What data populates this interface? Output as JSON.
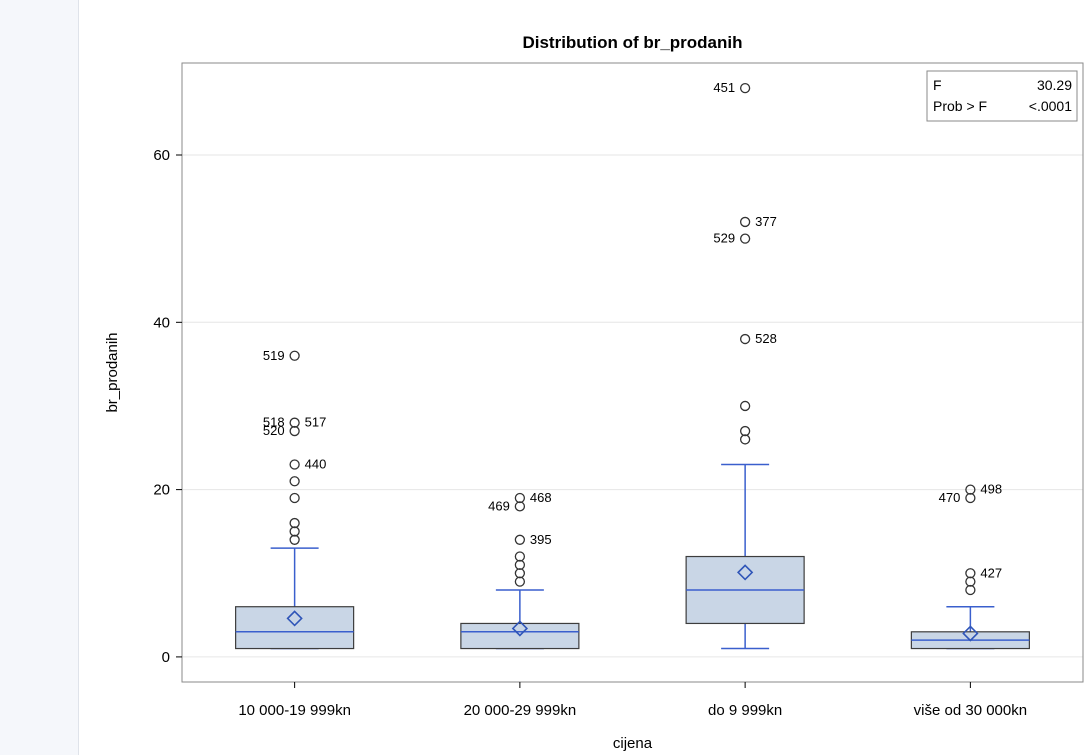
{
  "chart_data": {
    "type": "box",
    "title": "Distribution of br_prodanih",
    "xlabel": "cijena",
    "ylabel": "br_prodanih",
    "ylim": [
      -3,
      71
    ],
    "yticks": [
      0,
      20,
      40,
      60
    ],
    "ytick_labels": [
      "0",
      "20",
      "40",
      "60"
    ],
    "grid": "horizontal",
    "categories": [
      "10 000-19 999kn",
      "20 000-29 999kn",
      "do 9 999kn",
      "više od 30 000kn"
    ],
    "boxes": [
      {
        "category": "10 000-19 999kn",
        "whisker_low": 1,
        "q1": 1,
        "median": 3,
        "q3": 6,
        "whisker_high": 13,
        "mean": 4.6,
        "outliers": [
          14,
          15,
          16,
          19,
          21,
          23,
          27,
          28,
          36
        ]
      },
      {
        "category": "20 000-29 999kn",
        "whisker_low": 1,
        "q1": 1,
        "median": 3,
        "q3": 4,
        "whisker_high": 8,
        "mean": 3.4,
        "outliers": [
          9,
          10,
          11,
          12,
          14,
          18,
          19
        ]
      },
      {
        "category": "do 9 999kn",
        "whisker_low": 1,
        "q1": 4,
        "median": 8,
        "q3": 12,
        "whisker_high": 23,
        "mean": 10.1,
        "outliers": [
          26,
          27,
          30,
          38,
          50,
          52,
          68
        ]
      },
      {
        "category": "više od 30 000kn",
        "whisker_low": 1,
        "q1": 1,
        "median": 2,
        "q3": 3,
        "whisker_high": 6,
        "mean": 2.8,
        "outliers": [
          8,
          9,
          10,
          19,
          20
        ]
      }
    ],
    "outlier_labels": [
      {
        "category_index": 0,
        "y": 36,
        "text": "519",
        "side": "left"
      },
      {
        "category_index": 0,
        "y": 28,
        "text": "518",
        "side": "left"
      },
      {
        "category_index": 0,
        "y": 28,
        "text": "517",
        "side": "right"
      },
      {
        "category_index": 0,
        "y": 27,
        "text": "520",
        "side": "left"
      },
      {
        "category_index": 0,
        "y": 23,
        "text": "440",
        "side": "right"
      },
      {
        "category_index": 1,
        "y": 19,
        "text": "468",
        "side": "right"
      },
      {
        "category_index": 1,
        "y": 18,
        "text": "469",
        "side": "left"
      },
      {
        "category_index": 1,
        "y": 14,
        "text": "395",
        "side": "right"
      },
      {
        "category_index": 2,
        "y": 68,
        "text": "451",
        "side": "left"
      },
      {
        "category_index": 2,
        "y": 52,
        "text": "377",
        "side": "right"
      },
      {
        "category_index": 2,
        "y": 50,
        "text": "529",
        "side": "left"
      },
      {
        "category_index": 2,
        "y": 38,
        "text": "528",
        "side": "right"
      },
      {
        "category_index": 3,
        "y": 20,
        "text": "498",
        "side": "right"
      },
      {
        "category_index": 3,
        "y": 19,
        "text": "470",
        "side": "left"
      },
      {
        "category_index": 3,
        "y": 10,
        "text": "427",
        "side": "right"
      }
    ],
    "stats_inset": {
      "rows": [
        {
          "label": "F",
          "value": "30.29"
        },
        {
          "label": "Prob > F",
          "value": "<.0001"
        }
      ],
      "placement": "top-right"
    },
    "colors": {
      "box_fill": "#c9d6e6",
      "box_border": "#3d3d3d",
      "median_line": "#3a5fcd",
      "whisker": "#3a5fcd",
      "mean_marker": "#2f55b8",
      "outlier": "#333333",
      "grid": "#e6e6e6",
      "frame": "#8a8a8a"
    }
  }
}
